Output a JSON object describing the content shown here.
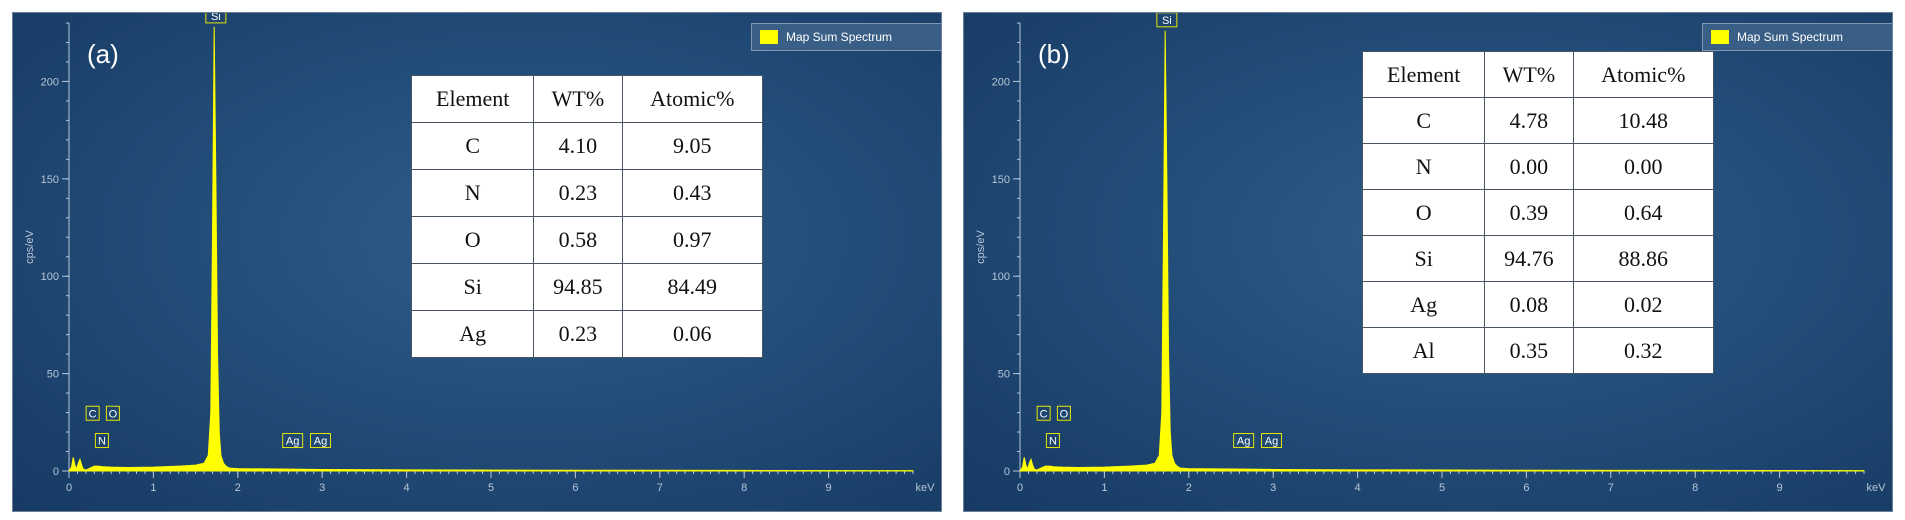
{
  "chart_data": [
    {
      "type": "area",
      "panel_label": "(a)",
      "legend": "Map Sum Spectrum",
      "ylabel": "cps/eV",
      "xunit": "keV",
      "xlim": [
        0,
        10
      ],
      "ylim": [
        0,
        230
      ],
      "xticks": [
        0,
        1,
        2,
        3,
        4,
        5,
        6,
        7,
        8,
        9
      ],
      "yticks": [
        0,
        50,
        100,
        150,
        200
      ],
      "spectrum": {
        "x": [
          0,
          0.03,
          0.05,
          0.07,
          0.09,
          0.11,
          0.13,
          0.15,
          0.17,
          0.2,
          0.25,
          0.3,
          0.35,
          0.4,
          0.5,
          0.7,
          1.0,
          1.3,
          1.5,
          1.6,
          1.65,
          1.68,
          1.7,
          1.72,
          1.74,
          1.76,
          1.78,
          1.8,
          1.83,
          1.86,
          1.9,
          2.0,
          2.5,
          3.0,
          4.0,
          6.0,
          8.0,
          10.0
        ],
        "y": [
          0,
          2,
          7,
          3,
          1,
          4,
          6,
          3,
          1,
          0.5,
          1.5,
          2.5,
          2.5,
          2.2,
          2,
          1.8,
          2,
          2.5,
          3,
          4,
          8,
          30,
          120,
          228,
          150,
          60,
          20,
          8,
          4,
          2.5,
          1.5,
          1.2,
          1,
          0.8,
          0.6,
          0.4,
          0.3,
          0.2
        ]
      },
      "element_markers": [
        {
          "label": "Si",
          "x": 1.74,
          "y_level": 228
        },
        {
          "label": "C",
          "x": 0.28,
          "y_level": 24
        },
        {
          "label": "O",
          "x": 0.52,
          "y_level": 24
        },
        {
          "label": "N",
          "x": 0.39,
          "y_level": 10
        },
        {
          "label": "Ag",
          "x": 2.65,
          "y_level": 10
        },
        {
          "label": "Ag",
          "x": 2.98,
          "y_level": 10
        }
      ],
      "table": {
        "headers": [
          "Element",
          "WT%",
          "Atomic%"
        ],
        "rows": [
          [
            "C",
            "4.10",
            "9.05"
          ],
          [
            "N",
            "0.23",
            "0.43"
          ],
          [
            "O",
            "0.58",
            "0.97"
          ],
          [
            "Si",
            "94.85",
            "84.49"
          ],
          [
            "Ag",
            "0.23",
            "0.06"
          ]
        ]
      }
    },
    {
      "type": "area",
      "panel_label": "(b)",
      "legend": "Map Sum Spectrum",
      "ylabel": "cps/eV",
      "xunit": "keV",
      "xlim": [
        0,
        10
      ],
      "ylim": [
        0,
        230
      ],
      "xticks": [
        0,
        1,
        2,
        3,
        4,
        5,
        6,
        7,
        8,
        9
      ],
      "yticks": [
        0,
        50,
        100,
        150,
        200
      ],
      "spectrum": {
        "x": [
          0,
          0.03,
          0.05,
          0.07,
          0.09,
          0.11,
          0.13,
          0.15,
          0.17,
          0.2,
          0.25,
          0.3,
          0.35,
          0.4,
          0.5,
          0.7,
          1.0,
          1.3,
          1.5,
          1.6,
          1.65,
          1.68,
          1.7,
          1.72,
          1.74,
          1.76,
          1.78,
          1.8,
          1.83,
          1.86,
          1.9,
          2.0,
          2.5,
          3.0,
          4.0,
          6.0,
          8.0,
          10.0
        ],
        "y": [
          0,
          2,
          7,
          3,
          1,
          4,
          6,
          3,
          1,
          0.5,
          1.5,
          2.5,
          2.5,
          2.2,
          2,
          1.8,
          2,
          2.5,
          3,
          4,
          8,
          30,
          120,
          226,
          150,
          60,
          20,
          8,
          4,
          2.5,
          1.5,
          1.2,
          1,
          0.8,
          0.6,
          0.4,
          0.3,
          0.2
        ]
      },
      "element_markers": [
        {
          "label": "Si",
          "x": 1.74,
          "y_level": 226
        },
        {
          "label": "C",
          "x": 0.28,
          "y_level": 24
        },
        {
          "label": "O",
          "x": 0.52,
          "y_level": 24
        },
        {
          "label": "N",
          "x": 0.39,
          "y_level": 10
        },
        {
          "label": "Ag",
          "x": 2.65,
          "y_level": 10
        },
        {
          "label": "Ag",
          "x": 2.98,
          "y_level": 10
        }
      ],
      "table": {
        "headers": [
          "Element",
          "WT%",
          "Atomic%"
        ],
        "rows": [
          [
            "C",
            "4.78",
            "10.48"
          ],
          [
            "N",
            "0.00",
            "0.00"
          ],
          [
            "O",
            "0.39",
            "0.64"
          ],
          [
            "Si",
            "94.76",
            "88.86"
          ],
          [
            "Ag",
            "0.08",
            "0.02"
          ],
          [
            "Al",
            "0.35",
            "0.32"
          ]
        ]
      }
    }
  ],
  "colors": {
    "spectrum": "#ffff00",
    "panel_bg": "#234d79",
    "axis": "#b6c6d8",
    "marker_border": "#e6e600"
  }
}
